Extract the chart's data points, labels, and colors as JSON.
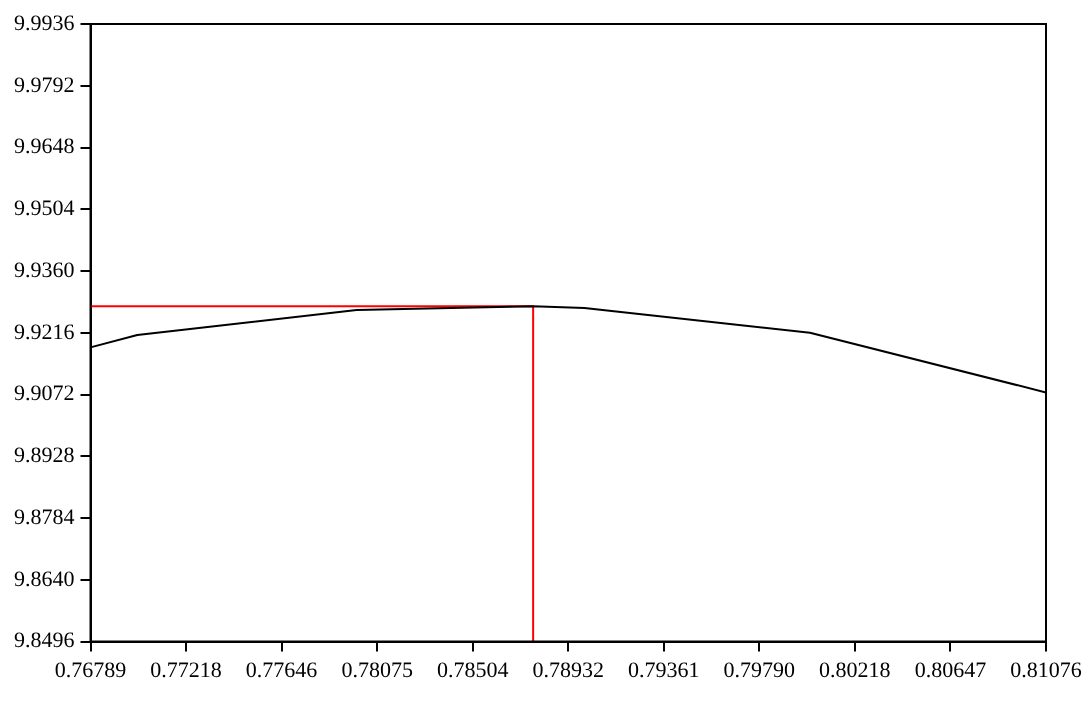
{
  "chart_data": {
    "type": "line",
    "xlim": [
      0.76789,
      0.81076
    ],
    "ylim": [
      9.8496,
      9.9936
    ],
    "xticks": [
      0.76789,
      0.77218,
      0.77646,
      0.78075,
      0.78504,
      0.78932,
      0.79361,
      {
        "value": 0.7979,
        "label": "0.79790"
      },
      {
        "value": 0.80218,
        "label": "0.80218"
      },
      0.80647,
      0.81076
    ],
    "yticks": [
      9.8496,
      {
        "value": 9.864,
        "label": "9.8640"
      },
      9.8784,
      9.8928,
      9.9072,
      9.9216,
      {
        "value": 9.936,
        "label": "9.9360"
      },
      9.9504,
      9.9648,
      9.9792,
      9.9936
    ],
    "grid": false,
    "legend": false,
    "marker": "none",
    "series": [
      {
        "color": "#000000",
        "x": [
          0.76789,
          0.76999,
          0.77983,
          0.78775,
          0.79005,
          0.80017,
          0.81076
        ],
        "values": [
          9.9182,
          9.9211,
          9.9269,
          9.9278,
          9.9274,
          9.9216,
          9.9077
        ]
      },
      {
        "color": "#ff0000",
        "x": [
          0.76789,
          0.78775,
          0.78775
        ],
        "values": [
          9.9278,
          9.9278,
          9.8496
        ]
      }
    ]
  }
}
